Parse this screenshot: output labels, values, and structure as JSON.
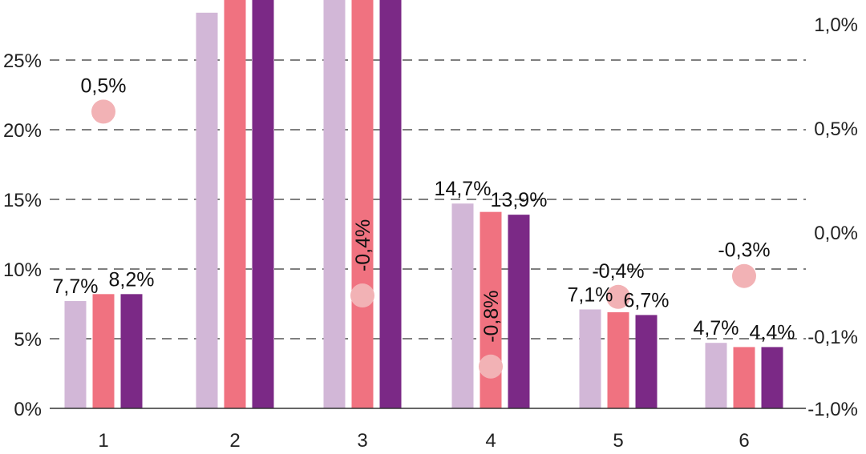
{
  "chart_data": {
    "type": "bar",
    "categories": [
      "1",
      "2",
      "3",
      "4",
      "5",
      "6"
    ],
    "ylim": [
      0,
      30
    ],
    "yticks": [
      0,
      5,
      10,
      15,
      20,
      25
    ],
    "ytick_labels": [
      "0%",
      "5%",
      "10%",
      "15%",
      "20%",
      "25%"
    ],
    "y2ticks": [
      "-1,0%",
      "-0,1%",
      "0,0%",
      "0,5%",
      "1,0%"
    ],
    "grid": true,
    "colors": [
      "#d2b7d7",
      "#f07280",
      "#7b2986"
    ],
    "marker_color": "#f2b2b5",
    "series": [
      {
        "values": [
          7.7,
          28.4,
          31,
          14.7,
          7.1,
          4.7
        ]
      },
      {
        "values": [
          8.2,
          31,
          31,
          14.1,
          6.9,
          4.4
        ]
      },
      {
        "values": [
          8.2,
          31,
          31,
          13.9,
          6.7,
          4.4
        ]
      }
    ],
    "bar_labels": [
      {
        "category": 0,
        "series": 0,
        "text": "7,7%"
      },
      {
        "category": 0,
        "series": 2,
        "text": "8,2%"
      },
      {
        "category": 3,
        "series": 0,
        "text": "14,7%"
      },
      {
        "category": 3,
        "series": 2,
        "text": "13,9%"
      },
      {
        "category": 4,
        "series": 0,
        "text": "7,1%"
      },
      {
        "category": 4,
        "series": 2,
        "text": "6,7%"
      },
      {
        "category": 5,
        "series": 0,
        "text": "4,7%"
      },
      {
        "category": 5,
        "series": 2,
        "text": "4,4%"
      }
    ],
    "markers": [
      {
        "category": 0,
        "y": 21.3,
        "label": "0,5%",
        "rotated": false
      },
      {
        "category": 2,
        "y": 8.1,
        "label": "-0,4%",
        "rotated": true
      },
      {
        "category": 3,
        "y": 3.0,
        "label": "-0,8%",
        "rotated": true
      },
      {
        "category": 4,
        "y": 8.0,
        "label": "-0,4%",
        "rotated": false
      },
      {
        "category": 5,
        "y": 9.5,
        "label": "-0,3%",
        "rotated": false
      }
    ]
  }
}
